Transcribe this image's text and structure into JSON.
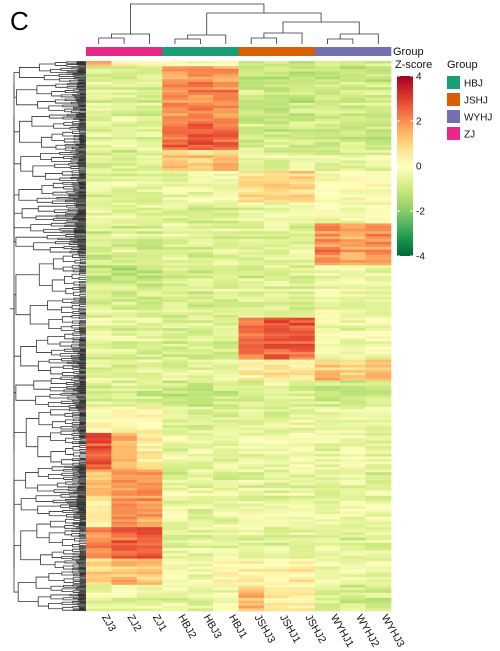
{
  "panel_label": "C",
  "chart_data": {
    "type": "heatmap",
    "title": "",
    "columns": [
      "ZJ3",
      "ZJ2",
      "ZJ1",
      "HBJ2",
      "HBJ3",
      "HBJ1",
      "JSHJ3",
      "JSHJ1",
      "JSHJ2",
      "WYHJ1",
      "WYHJ2",
      "WYHJ3"
    ],
    "column_groups": [
      "ZJ",
      "ZJ",
      "ZJ",
      "HBJ",
      "HBJ",
      "HBJ",
      "JSHJ",
      "JSHJ",
      "JSHJ",
      "WYHJ",
      "WYHJ",
      "WYHJ"
    ],
    "annotation_label": "Group",
    "legend": {
      "title": "Group",
      "entries": [
        {
          "name": "HBJ",
          "color": "#1b9e77"
        },
        {
          "name": "JSHJ",
          "color": "#d95f02"
        },
        {
          "name": "WYHJ",
          "color": "#7570b3"
        },
        {
          "name": "ZJ",
          "color": "#e7298a"
        }
      ]
    },
    "colorbar": {
      "title": "Z-score",
      "range": [
        -4,
        4
      ],
      "ticks": [
        "4",
        "2",
        "0",
        "-2",
        "-4"
      ],
      "palette": [
        "#006837",
        "#1a9850",
        "#66bd63",
        "#a6d96a",
        "#d9ef8b",
        "#ffffbf",
        "#fee08b",
        "#fdae61",
        "#f46d43",
        "#d73027",
        "#a50026"
      ]
    },
    "row_blocks": [
      {
        "rows": 2,
        "values": [
          1.8,
          0.5,
          0.4,
          0.2,
          0.0,
          0.1,
          -0.6,
          -0.8,
          -0.7,
          -0.8,
          -0.9,
          -0.7
        ]
      },
      {
        "rows": 22,
        "values": [
          -0.6,
          -0.5,
          -0.6,
          1.9,
          2.0,
          2.0,
          -1.0,
          -1.1,
          -1.0,
          -0.9,
          -1.0,
          -0.9
        ]
      },
      {
        "rows": 10,
        "values": [
          -0.6,
          -0.6,
          -0.7,
          2.3,
          2.6,
          2.3,
          -0.9,
          -0.9,
          -1.0,
          -1.0,
          -0.9,
          -1.0
        ]
      },
      {
        "rows": 8,
        "values": [
          -0.7,
          -0.7,
          -0.6,
          1.2,
          1.0,
          1.3,
          -0.5,
          -0.6,
          -0.5,
          -0.6,
          -0.5,
          -0.6
        ]
      },
      {
        "rows": 12,
        "values": [
          -0.6,
          -0.6,
          -0.6,
          -0.4,
          -0.4,
          -0.5,
          0.9,
          1.1,
          0.9,
          -0.2,
          0.1,
          -0.1
        ]
      },
      {
        "rows": 8,
        "values": [
          -0.5,
          -0.6,
          -0.5,
          -0.6,
          -0.6,
          -0.6,
          -0.4,
          -0.5,
          -0.4,
          -0.2,
          -0.1,
          -0.1
        ]
      },
      {
        "rows": 16,
        "values": [
          -0.8,
          -0.7,
          -0.8,
          -0.6,
          -0.7,
          -0.6,
          -0.7,
          -0.6,
          -0.6,
          2.0,
          1.7,
          1.9
        ]
      },
      {
        "rows": 8,
        "values": [
          -1.2,
          -1.3,
          -1.1,
          -0.8,
          -0.9,
          -0.8,
          -0.8,
          -0.7,
          -0.8,
          -0.4,
          -0.3,
          -0.5
        ]
      },
      {
        "rows": 12,
        "values": [
          -0.7,
          -0.6,
          -0.7,
          -0.6,
          -0.7,
          -0.6,
          -0.5,
          -0.5,
          -0.6,
          -0.3,
          -0.2,
          -0.4
        ]
      },
      {
        "rows": 16,
        "values": [
          -0.6,
          -0.7,
          -0.6,
          -0.7,
          -0.8,
          -0.7,
          2.3,
          2.6,
          2.5,
          -0.3,
          -0.4,
          -0.2
        ]
      },
      {
        "rows": 8,
        "values": [
          -0.5,
          -0.6,
          -0.5,
          -0.6,
          -0.5,
          -0.6,
          0.5,
          0.6,
          0.5,
          1.3,
          1.0,
          1.4
        ]
      },
      {
        "rows": 10,
        "values": [
          -0.7,
          -0.6,
          -0.8,
          -0.9,
          -1.0,
          -0.8,
          -0.6,
          -0.5,
          -0.6,
          -0.8,
          -0.9,
          -0.8
        ]
      },
      {
        "rows": 10,
        "values": [
          0.2,
          0.1,
          0.5,
          -0.7,
          -0.6,
          -0.7,
          -0.4,
          -0.5,
          -0.3,
          -0.2,
          -0.3,
          -0.3
        ]
      },
      {
        "rows": 14,
        "values": [
          2.8,
          1.4,
          0.6,
          -0.5,
          -0.4,
          -0.5,
          -0.3,
          -0.4,
          -0.3,
          -0.4,
          -0.3,
          -0.4
        ]
      },
      {
        "rows": 12,
        "values": [
          1.2,
          1.8,
          2.0,
          -0.6,
          -0.5,
          -0.6,
          -0.5,
          -0.6,
          -0.5,
          -0.6,
          -0.5,
          -0.6
        ]
      },
      {
        "rows": 10,
        "values": [
          0.5,
          2.0,
          1.6,
          -0.5,
          -0.6,
          -0.4,
          -0.4,
          -0.5,
          -0.4,
          -0.5,
          -0.4,
          -0.5
        ]
      },
      {
        "rows": 12,
        "values": [
          2.0,
          2.4,
          2.6,
          -0.7,
          -0.6,
          -0.6,
          -0.6,
          -0.7,
          -0.6,
          -0.6,
          -0.7,
          -0.6
        ]
      },
      {
        "rows": 10,
        "values": [
          0.9,
          1.3,
          1.1,
          -0.3,
          -0.2,
          0.2,
          0.4,
          0.3,
          0.5,
          -0.4,
          -0.3,
          -0.5
        ]
      },
      {
        "rows": 10,
        "values": [
          -0.4,
          -0.3,
          -0.4,
          -0.5,
          -0.6,
          -0.4,
          1.3,
          0.6,
          0.4,
          -0.7,
          -0.8,
          -0.9
        ]
      }
    ]
  }
}
